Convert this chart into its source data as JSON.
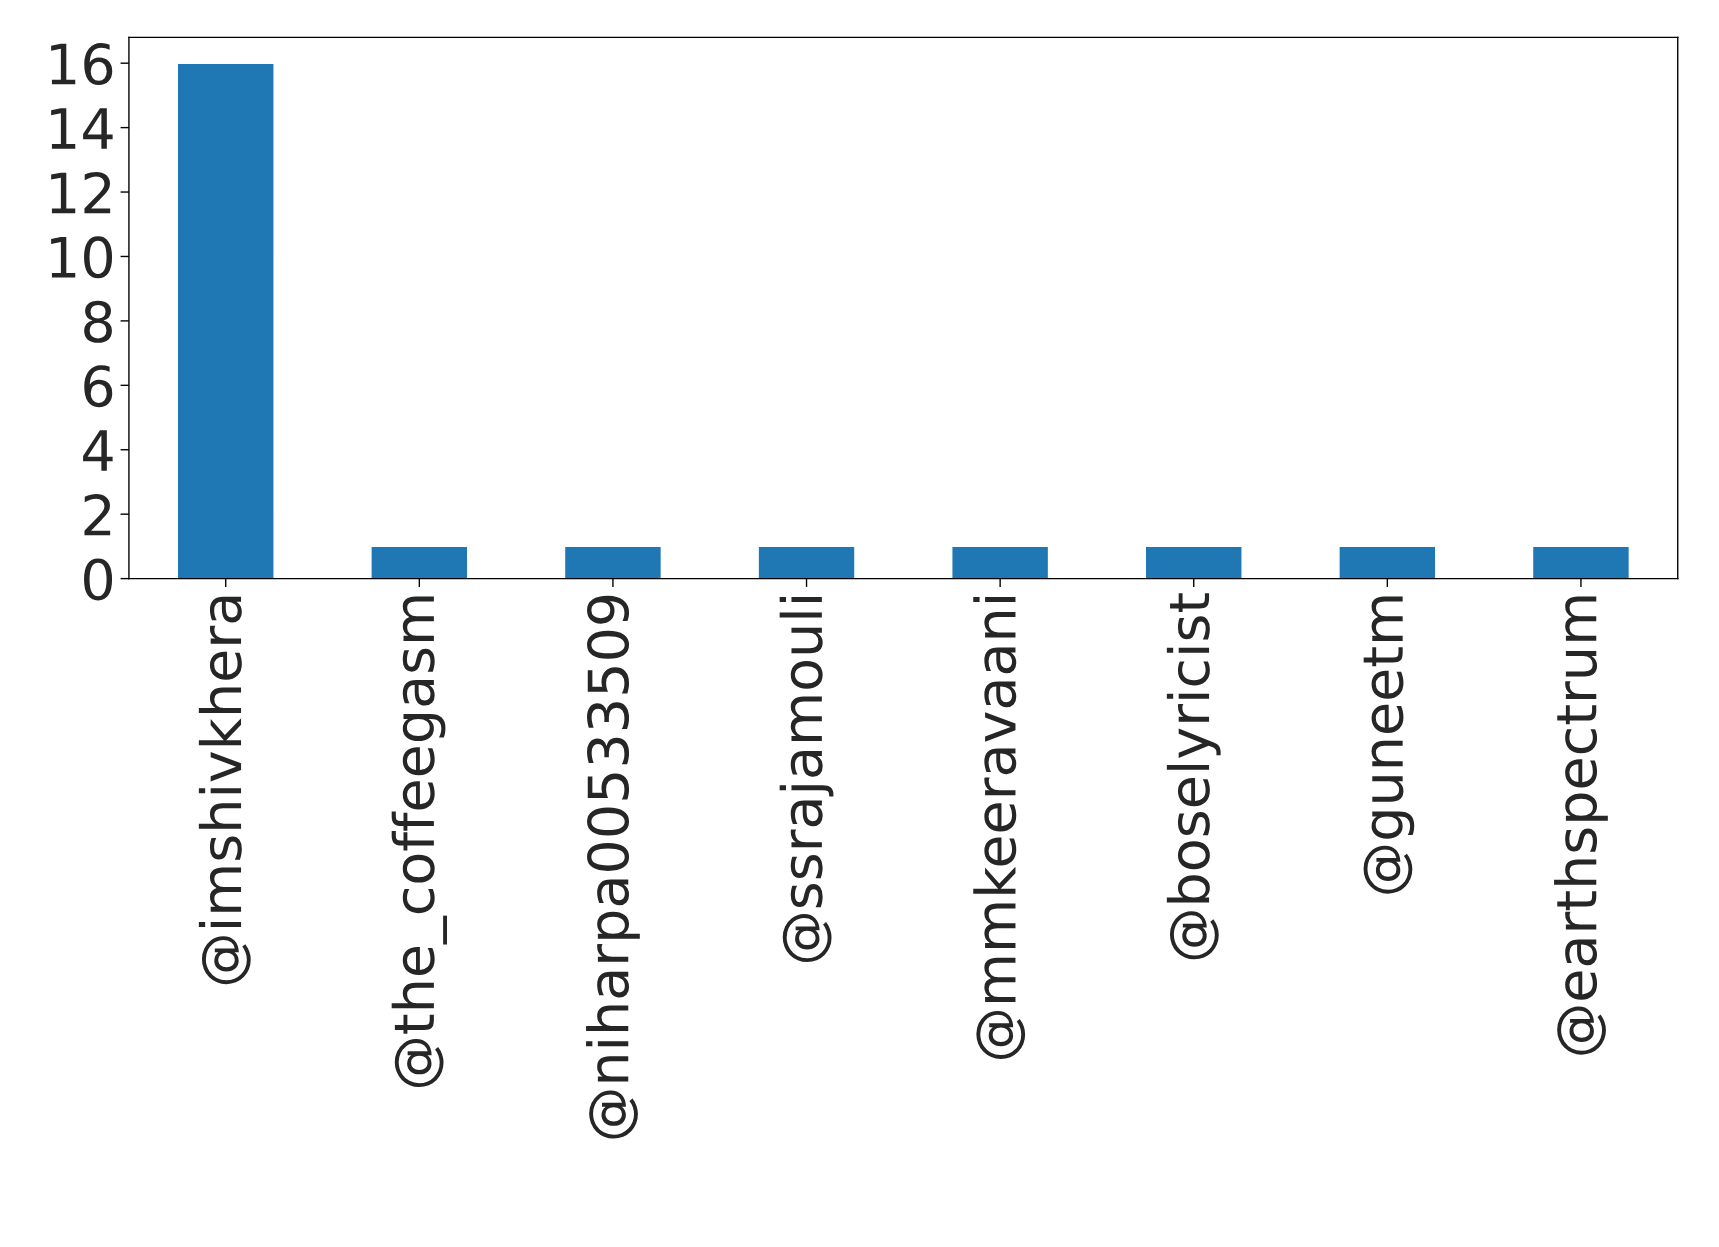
{
  "chart_data": {
    "type": "bar",
    "categories": [
      "@imshivkhera",
      "@the_coffeegasm",
      "@niharpa00533509",
      "@ssrajamouli",
      "@mmkeeravaani",
      "@boselyricist",
      "@guneetm",
      "@earthspectrum"
    ],
    "values": [
      16,
      1,
      1,
      1,
      1,
      1,
      1,
      1
    ],
    "color": "#1f77b4",
    "ylim": [
      0,
      16.8
    ],
    "yticks": [
      0,
      2,
      4,
      6,
      8,
      10,
      12,
      14,
      16
    ],
    "grid": false,
    "legend": false
  }
}
